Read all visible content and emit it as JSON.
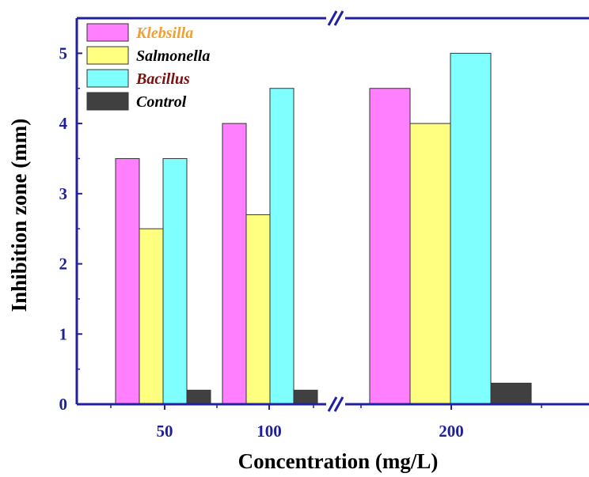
{
  "chart_data": {
    "type": "bar",
    "categories": [
      "50",
      "100",
      "200"
    ],
    "series": [
      {
        "name": "Klebsilla",
        "values": [
          3.5,
          4.0,
          4.5
        ],
        "color": "#ff7fff",
        "label_color": "#f0a030"
      },
      {
        "name": "Salmonella",
        "values": [
          2.5,
          2.7,
          4.0
        ],
        "color": "#ffff80",
        "label_color": "#000000"
      },
      {
        "name": "Bacillus",
        "values": [
          3.5,
          4.5,
          5.0
        ],
        "color": "#80ffff",
        "label_color": "#7a1010"
      },
      {
        "name": "Control",
        "values": [
          0.2,
          0.2,
          0.3
        ],
        "color": "#404040",
        "label_color": "#000000"
      }
    ],
    "xlabel": "Concentration (mg/L)",
    "ylabel": "Inhibition zone (mm)",
    "ylim": [
      0,
      5.5
    ],
    "yticks": [
      "0",
      "1",
      "2",
      "3",
      "4",
      "5"
    ],
    "x_axis_break": true,
    "legend_position": "top-left",
    "grid": false,
    "axis_color": "#2020a0"
  }
}
